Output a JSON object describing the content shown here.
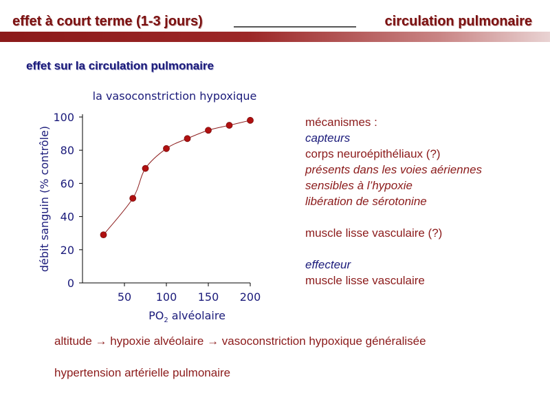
{
  "header": {
    "left": "effet à court terme (1-3 jours)",
    "right": "circulation pulmonaire"
  },
  "subtitle": "effet sur la circulation pulmonaire",
  "colors": {
    "accent": "#8b1a1a",
    "text_blue": "#1a1a7a",
    "marker": "#b01010"
  },
  "chart_data": {
    "type": "line",
    "title": "la vasoconstriction hypoxique",
    "xlabel_main": "PO",
    "xlabel_sub": "2",
    "xlabel_rest": " alvéolaire",
    "ylabel": "débit sanguin (% contrôle)",
    "x_ticks": [
      "50",
      "100",
      "150",
      "200"
    ],
    "y_ticks": [
      "0",
      "20",
      "40",
      "60",
      "80",
      "100"
    ],
    "xlim": [
      0,
      200
    ],
    "ylim": [
      0,
      100
    ],
    "series": [
      {
        "x": [
          25,
          60,
          75,
          100,
          125,
          150,
          175,
          200
        ],
        "y": [
          29,
          51,
          69,
          81,
          87,
          92,
          95,
          98
        ]
      }
    ]
  },
  "mechanisms": {
    "line1": "mécanismes :",
    "line2": "capteurs",
    "line3": "corps neuroépithéliaux (?)",
    "line4": "présents dans les voies aériennes",
    "line5": "sensibles à l’hypoxie",
    "line6": "libération de sérotonine",
    "line7": "muscle lisse vasculaire (?)",
    "line8": "effecteur",
    "line9": "muscle lisse vasculaire"
  },
  "bottom": {
    "line1": "altitude → hypoxie alvéolaire → vasoconstriction hypoxique généralisée",
    "line2": "hypertension artérielle pulmonaire"
  }
}
